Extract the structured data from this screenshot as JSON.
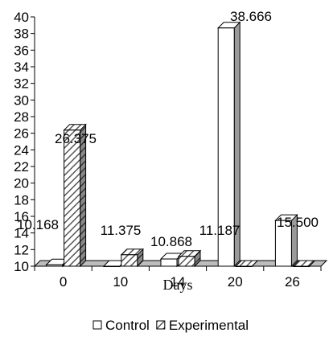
{
  "chart_data": {
    "type": "bar",
    "title": "",
    "xlabel": "Days",
    "ylabel": "",
    "categories": [
      "0",
      "10",
      "14",
      "20",
      "26"
    ],
    "ylim": [
      10,
      40
    ],
    "yticks": [
      "10",
      "12",
      "14",
      "16",
      "18",
      "20",
      "22",
      "24",
      "26",
      "28",
      "30",
      "32",
      "34",
      "36",
      "38",
      "40"
    ],
    "grid": false,
    "legend_position": "bottom",
    "series": [
      {
        "name": "Control",
        "values": [
          10.168,
          null,
          10.868,
          38.666,
          15.5
        ],
        "labels": [
          "10.168",
          "",
          "10.868",
          "38.666",
          "15.500"
        ],
        "fill": "#ffffff",
        "pattern": "plain"
      },
      {
        "name": "Experimental",
        "values": [
          26.375,
          11.375,
          11.187,
          null,
          null
        ],
        "labels": [
          "26.375",
          "11.375",
          "11.187",
          "",
          ""
        ],
        "fill": "#ffffff",
        "pattern": "diagonal-hatch"
      }
    ]
  }
}
